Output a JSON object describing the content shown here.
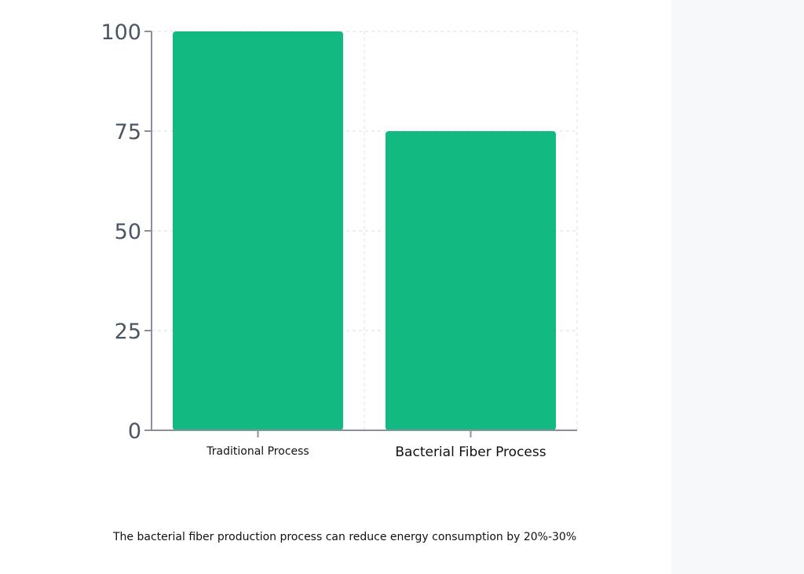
{
  "chart_data": {
    "type": "bar",
    "categories": [
      "Traditional Process",
      "Bacterial Fiber Process"
    ],
    "values": [
      100,
      75
    ],
    "ylim": [
      0,
      100
    ],
    "yticks": [
      0,
      25,
      50,
      75,
      100
    ],
    "grid": true,
    "bar_color": "#12b981",
    "title": "",
    "xlabel": "",
    "ylabel": ""
  },
  "caption": "The bacterial fiber production process can reduce energy consumption by 20%-30%"
}
